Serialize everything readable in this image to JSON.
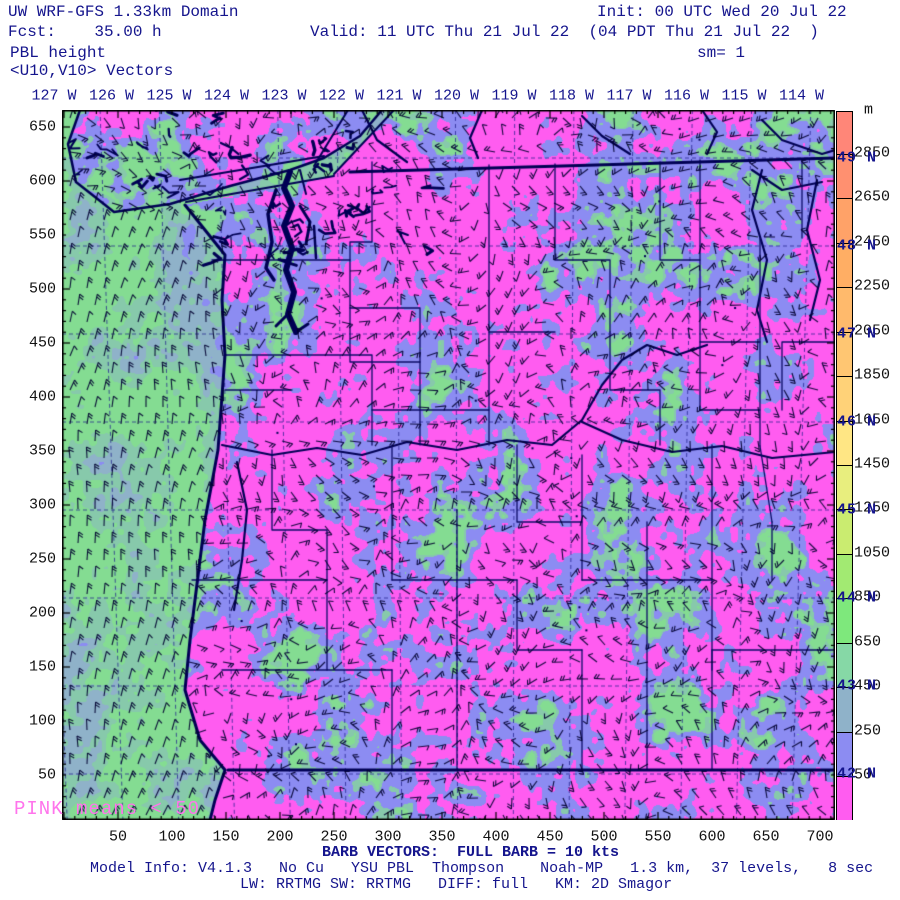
{
  "header": {
    "domain_title": "UW WRF-GFS 1.33km Domain",
    "init": "Init: 00 UTC Wed 20 Jul 22",
    "fcst": "Fcst:    35.00 h",
    "valid": "Valid: 11 UTC Thu 21 Jul 22  (04 PDT Thu 21 Jul 22  )",
    "variable": "PBL height",
    "smoothing": "sm= 1",
    "vectors": "<U10,V10> Vectors"
  },
  "axes": {
    "top_longitude_labels": [
      "127 W",
      "126 W",
      "125 W",
      "124 W",
      "123 W",
      "122 W",
      "121 W",
      "120 W",
      "119 W",
      "118 W",
      "117 W",
      "116 W",
      "115 W",
      "114 W"
    ],
    "right_latitude_labels": [
      "49 N",
      "48 N",
      "47 N",
      "46 N",
      "45 N",
      "44 N",
      "43 N",
      "42 N"
    ],
    "left_y_labels": [
      "650",
      "600",
      "550",
      "500",
      "450",
      "400",
      "350",
      "300",
      "250",
      "200",
      "150",
      "100",
      "50"
    ],
    "bottom_x_labels": [
      "50",
      "100",
      "150",
      "200",
      "250",
      "300",
      "350",
      "400",
      "450",
      "500",
      "550",
      "600",
      "650",
      "700"
    ]
  },
  "colorbar": {
    "unit": "m",
    "tick_labels": [
      "2850",
      "2650",
      "2450",
      "2250",
      "2050",
      "1850",
      "1650",
      "1450",
      "1250",
      "1050",
      "850",
      "650",
      "450",
      "250",
      "50"
    ],
    "segment_colors_top_to_bottom": [
      "#ff8678",
      "#ff9070",
      "#ffa268",
      "#ffae64",
      "#ffba6c",
      "#ffc672",
      "#ffd278",
      "#ffe684",
      "#e8ee7e",
      "#caec70",
      "#a2ea72",
      "#7ee87c",
      "#86d8a6",
      "#8fb2c9",
      "#8c8cf2",
      "#ff5cf0"
    ],
    "note": "PINK means < 50"
  },
  "footer": {
    "barb_legend": "BARB VECTORS:  FULL BARB = 10 kts",
    "model_info": "Model Info: V4.1.3   No Cu   YSU PBL  Thompson    Noah-MP   1.3 km,  37 levels,   8 sec",
    "physics": "LW: RRTMG SW: RRTMG   DIFF: full   KM: 2D Smagor"
  },
  "colors": {
    "text_navy": "#15158d",
    "text_black": "#111111",
    "note_pink": "#ff74ec",
    "map_magenta": "#ff5cf0",
    "map_periwinkle": "#8c8cf2",
    "map_slate": "#8fb2c9",
    "map_teal": "#87c9ab",
    "map_green": "#84dc92",
    "feature_navy": "#000054"
  },
  "chart_data": {
    "type": "heatmap",
    "title": "PBL height",
    "units": "m",
    "colorbar_levels": [
      2850,
      2650,
      2450,
      2250,
      2050,
      1850,
      1650,
      1450,
      1250,
      1050,
      850,
      650,
      450,
      250,
      50
    ],
    "note_meaning": "PINK means < 50"
  }
}
